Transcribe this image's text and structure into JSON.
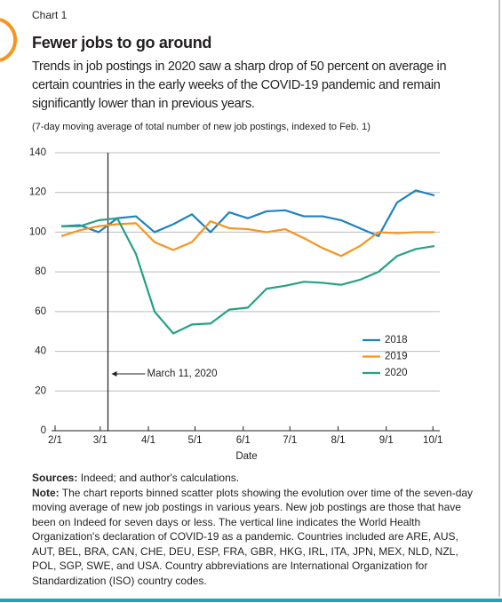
{
  "header": "Chart 1",
  "chart_data": {
    "type": "line",
    "title": "Fewer jobs to go around",
    "subtitle": "Trends in job postings in 2020 saw a sharp drop of 50 percent on average in certain countries in the early weeks of the COVID-19 pandemic and remain significantly lower than in previous years.",
    "note": "(7-day moving average of total number of new job postings, indexed to Feb. 1)",
    "x_label": "Date",
    "x": [
      4,
      16,
      28,
      40,
      52,
      64,
      76,
      88,
      100,
      112,
      124,
      136,
      148,
      160,
      172,
      184,
      196,
      208,
      220,
      232,
      244
    ],
    "xlim": [
      0,
      252
    ],
    "xticks": [
      {
        "value": 0,
        "label": "2/1"
      },
      {
        "value": 29,
        "label": "3/1"
      },
      {
        "value": 60,
        "label": "4/1"
      },
      {
        "value": 90,
        "label": "5/1"
      },
      {
        "value": 121,
        "label": "6/1"
      },
      {
        "value": 151,
        "label": "7/1"
      },
      {
        "value": 182,
        "label": "8/1"
      },
      {
        "value": 213,
        "label": "9/1"
      },
      {
        "value": 243,
        "label": "10/1"
      }
    ],
    "ylim": [
      0,
      140
    ],
    "yticks": [
      0,
      20,
      40,
      60,
      80,
      100,
      120,
      140
    ],
    "grid": true,
    "legend": "right",
    "series": [
      {
        "name": "2018",
        "color": "#1f82c0",
        "values": [
          103,
          103.5,
          100,
          107,
          108,
          100,
          104,
          109,
          100,
          110,
          107,
          110.5,
          111,
          108,
          108,
          106,
          102,
          98,
          115,
          121,
          118.5
        ]
      },
      {
        "name": "2019",
        "color": "#f7941d",
        "values": [
          98,
          101,
          103,
          104,
          104.5,
          95,
          91,
          95,
          105.5,
          102,
          101.5,
          100,
          101.5,
          97,
          92,
          88,
          93,
          100,
          99.5,
          100,
          100
        ]
      },
      {
        "name": "2020",
        "color": "#26a184",
        "values": [
          103,
          103,
          106,
          107,
          89,
          60,
          49,
          53.5,
          54,
          61,
          62,
          71.5,
          73,
          75,
          74.5,
          73.5,
          76,
          80,
          88,
          91.5,
          93
        ]
      }
    ],
    "annotation": {
      "text": "March 11, 2020",
      "x": 34
    }
  },
  "sources": {
    "label": "Sources:",
    "text": "Indeed; and author's calculations."
  },
  "footnote": {
    "label": "Note:",
    "text": "The chart reports binned scatter plots showing the evolution over time of the seven-day moving average of new job postings in various years. New job postings are those that have been on Indeed for seven days or less. The vertical line indicates the World Health Organization's declaration of COVID-19 as a pandemic. Countries included are ARE, AUS, AUT, BEL, BRA, CAN, CHE, DEU, ESP, FRA, GBR, HKG, IRL, ITA, JPN, MEX, NLD, NZL, POL, SGP, SWE, and USA. Country abbreviations are International Organization for Standardization (ISO) country codes."
  }
}
